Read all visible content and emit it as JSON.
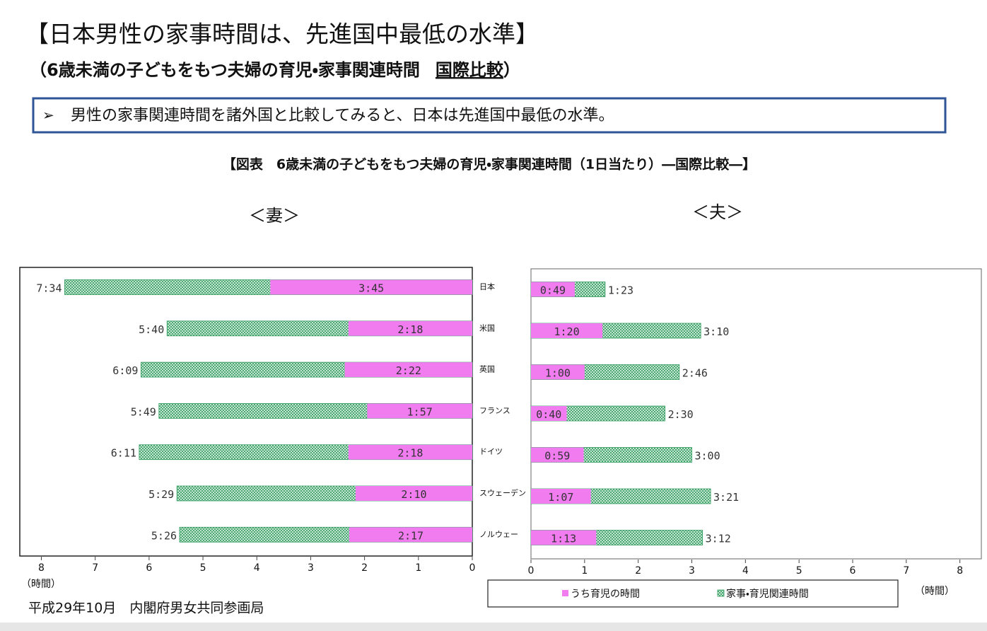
{
  "header": {
    "title": "【日本男性の家事時間は、先進国中最低の水準】",
    "subtitle": "（6歳未満の子どもをもつ夫婦の育児・家事関連時間",
    "subtitle_emph": "国際比較",
    "subtitle_end": "）",
    "callout": "男性の家事関連時間を諸外国と比較してみると、日本は先進国中最低の水準。",
    "caption": "【図表　6歳未満の子どもをもつ夫婦の育児・家事関連時間（1日当たり）―国際比較―】"
  },
  "chart_data": [
    {
      "type": "bar",
      "orientation": "horizontal",
      "title": "＜妻＞",
      "xlabel": "（時間）",
      "categories": [
        "日本",
        "米国",
        "英国",
        "フランス",
        "ドイツ",
        "スウェーデン",
        "ノルウェー"
      ],
      "xlim": [
        8.4,
        0
      ],
      "xticks": [
        8,
        7,
        6,
        5,
        4,
        3,
        2,
        1,
        0
      ],
      "series": [
        {
          "color": "#2e9a5c",
          "pattern": "crosshatch",
          "values": [
            7.5667,
            5.6667,
            6.15,
            5.8167,
            6.1833,
            5.4833,
            5.4333
          ],
          "value_labels": [
            "7:34",
            "5:40",
            "6:09",
            "5:49",
            "6:11",
            "5:29",
            "5:26"
          ]
        },
        {
          "color": "#f07cf0",
          "values": [
            3.75,
            2.3,
            2.3667,
            1.95,
            2.3,
            2.1667,
            2.2833
          ],
          "value_labels": [
            "3:45",
            "2:18",
            "2:22",
            "1:57",
            "2:18",
            "2:10",
            "2:17"
          ]
        }
      ]
    },
    {
      "type": "bar",
      "orientation": "horizontal",
      "title": "＜夫＞",
      "xlabel": "（時間）",
      "xlim": [
        0,
        8.4
      ],
      "xticks": [
        0,
        1,
        2,
        3,
        4,
        5,
        6,
        7,
        8
      ],
      "series": [
        {
          "name": "家事・育児関連時間",
          "color": "#2e9a5c",
          "pattern": "crosshatch",
          "values": [
            1.3833,
            3.1667,
            2.7667,
            2.5,
            3,
            3.35,
            3.2
          ],
          "value_labels": [
            "1:23",
            "3:10",
            "2:46",
            "2:30",
            "3:00",
            "3:21",
            "3:12"
          ]
        },
        {
          "name": "うち育児の時間",
          "color": "#f07cf0",
          "values": [
            0.8167,
            1.3333,
            1,
            0.6667,
            0.9833,
            1.1167,
            1.2167
          ],
          "value_labels": [
            "0:49",
            "1:20",
            "1:00",
            "0:40",
            "0:59",
            "1:07",
            "1:13"
          ]
        }
      ]
    }
  ],
  "footer": "平成29年10月　内閣府男女共同参画局"
}
